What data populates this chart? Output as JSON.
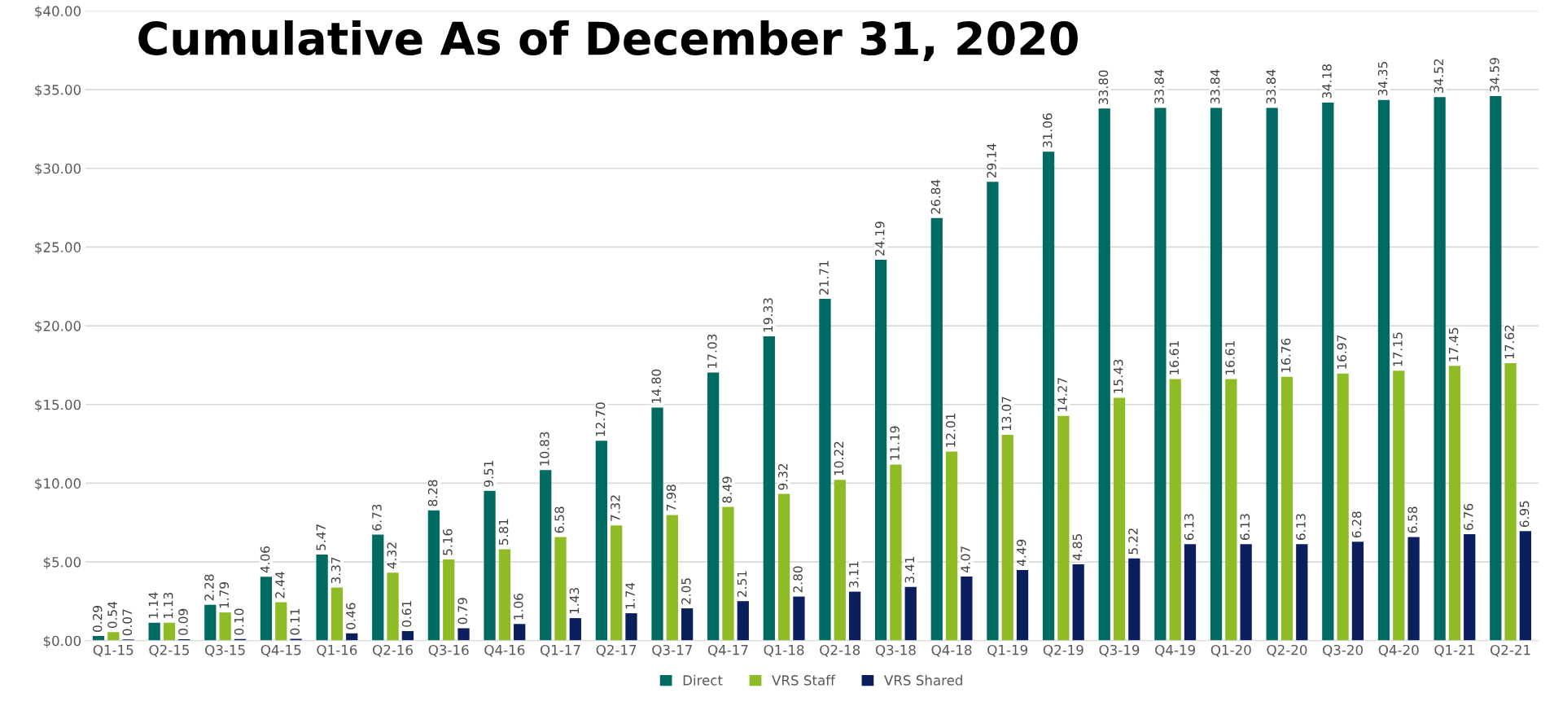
{
  "chart_data": {
    "type": "bar",
    "title": "Cumulative As of December 31, 2020",
    "categories": [
      "Q1-15",
      "Q2-15",
      "Q3-15",
      "Q4-15",
      "Q1-16",
      "Q2-16",
      "Q3-16",
      "Q4-16",
      "Q1-17",
      "Q2-17",
      "Q3-17",
      "Q4-17",
      "Q1-18",
      "Q2-18",
      "Q3-18",
      "Q4-18",
      "Q1-19",
      "Q2-19",
      "Q3-19",
      "Q4-19",
      "Q1-20",
      "Q2-20",
      "Q3-20",
      "Q4-20",
      "Q1-21",
      "Q2-21"
    ],
    "series": [
      {
        "name": "Direct",
        "color": "#006b63",
        "values": [
          0.29,
          1.14,
          2.28,
          4.06,
          5.47,
          6.73,
          8.28,
          9.51,
          10.83,
          12.7,
          14.8,
          17.03,
          19.33,
          21.71,
          24.19,
          26.84,
          29.14,
          31.06,
          33.8,
          33.84,
          33.84,
          33.84,
          34.18,
          34.35,
          34.52,
          34.59
        ],
        "value_labels": [
          "0.29",
          "1.14",
          "2.28",
          "4.06",
          "5.47",
          "6.73",
          "8.28",
          "9.51",
          "10.83",
          "12.70",
          "14.80",
          "17.03",
          "19.33",
          "21.71",
          "24.19",
          "26.84",
          "29.14",
          "31.06",
          "33.80",
          "33.84",
          "33.84",
          "33.84",
          "34.18",
          "34.35",
          "34.52",
          "34.59"
        ]
      },
      {
        "name": "VRS Staff",
        "color": "#8fbc26",
        "values": [
          0.54,
          1.13,
          1.79,
          2.44,
          3.37,
          4.32,
          5.16,
          5.81,
          6.58,
          7.32,
          7.98,
          8.49,
          9.32,
          10.22,
          11.19,
          12.01,
          13.07,
          14.27,
          15.43,
          16.61,
          16.61,
          16.76,
          16.97,
          17.15,
          17.45,
          17.62
        ],
        "value_labels": [
          "0.54",
          "1.13",
          "1.79",
          "2.44",
          "3.37",
          "4.32",
          "5.16",
          "5.81",
          "6.58",
          "7.32",
          "7.98",
          "8.49",
          "9.32",
          "10.22",
          "11.19",
          "12.01",
          "13.07",
          "14.27",
          "15.43",
          "16.61",
          "16.61",
          "16.76",
          "16.97",
          "17.15",
          "17.45",
          "17.62"
        ]
      },
      {
        "name": "VRS Shared",
        "color": "#0b1f5e",
        "values": [
          0.07,
          0.09,
          0.1,
          0.11,
          0.46,
          0.61,
          0.79,
          1.06,
          1.43,
          1.74,
          2.05,
          2.51,
          2.8,
          3.11,
          3.41,
          4.07,
          4.49,
          4.85,
          5.22,
          6.13,
          6.13,
          6.13,
          6.28,
          6.58,
          6.76,
          6.95
        ],
        "value_labels": [
          "0.07",
          "0.09",
          "0.10",
          "0.11",
          "0.46",
          "0.61",
          "0.79",
          "1.06",
          "1.43",
          "1.74",
          "2.05",
          "2.51",
          "2.80",
          "3.11",
          "3.41",
          "4.07",
          "4.49",
          "4.85",
          "5.22",
          "6.13",
          "6.13",
          "6.13",
          "6.28",
          "6.58",
          "6.76",
          "6.95"
        ]
      }
    ],
    "ylim": [
      0,
      40
    ],
    "yticks": [
      {
        "value": 0,
        "label": "$0.00"
      },
      {
        "value": 5,
        "label": "$5.00"
      },
      {
        "value": 10,
        "label": "$10.00"
      },
      {
        "value": 15,
        "label": "$15.00"
      },
      {
        "value": 20,
        "label": "$20.00"
      },
      {
        "value": 25,
        "label": "$25.00"
      },
      {
        "value": 30,
        "label": "$30.00"
      },
      {
        "value": 35,
        "label": "$35.00"
      },
      {
        "value": 40,
        "label": "$40.00"
      }
    ],
    "grid": "y",
    "legend": "bottom"
  }
}
